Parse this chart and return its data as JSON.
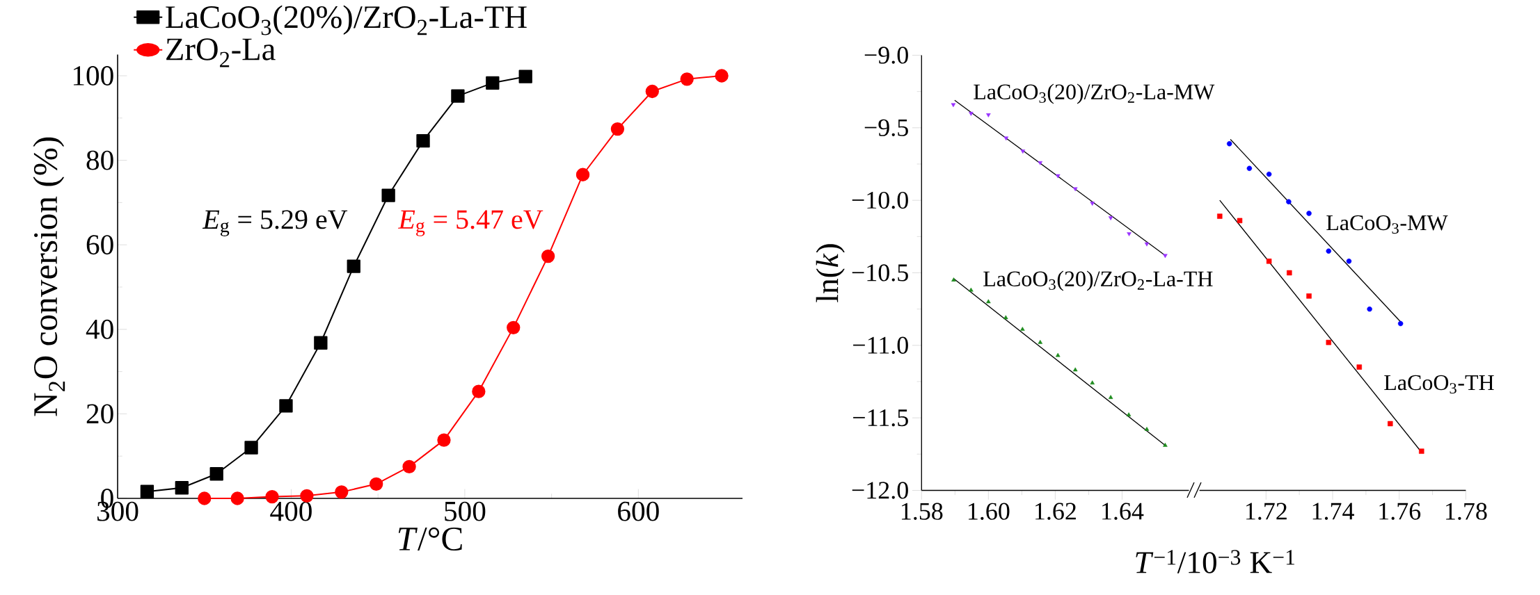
{
  "chart_data": [
    {
      "type": "line",
      "xlabel": "*T*/°C",
      "ylabel": "N$_{2}$O conversion (%)",
      "xlim": [
        300,
        660
      ],
      "ylim": [
        0,
        105
      ],
      "xticks": [
        300,
        400,
        500,
        600
      ],
      "yticks": [
        0,
        20,
        40,
        60,
        80,
        100
      ],
      "legend": "top left",
      "series": [
        {
          "name": "LaCoO$_{3}$(20%)/ZrO$_{2}$-La-TH",
          "color": "#000000",
          "marker": "square",
          "x": [
            317,
            337,
            357,
            377,
            397,
            417,
            436,
            456,
            476,
            496,
            516,
            535
          ],
          "values": [
            1.6,
            2.5,
            5.8,
            12.0,
            21.9,
            36.8,
            54.9,
            71.7,
            84.6,
            95.2,
            98.3,
            99.8
          ]
        },
        {
          "name": "ZrO$_{2}$-La",
          "color": "#ff0000",
          "marker": "circle",
          "x": [
            350,
            369,
            389,
            409,
            429,
            449,
            468,
            488,
            508,
            528,
            548,
            568,
            588,
            608,
            628,
            648
          ],
          "values": [
            0,
            0,
            0.4,
            0.6,
            1.5,
            3.4,
            7.5,
            13.8,
            25.3,
            40.4,
            57.3,
            76.6,
            87.4,
            96.3,
            99.2,
            100
          ]
        }
      ],
      "annotations": [
        "*E*$_{g}$ = 5.29 eV",
        "*E*$_{g}$ = 5.47 eV"
      ]
    },
    {
      "type": "scatter",
      "xlabel": "*T*$^{−1}$/10$^{−3}$ K$^{−1}$",
      "ylabel": "ln(*k*)",
      "xlim": [
        1.58,
        1.66
      ],
      "ylim": [
        -12,
        -9
      ],
      "xticks": [
        1.58,
        {
          "value": 1.6,
          "label": "1.60"
        },
        1.62,
        1.64
      ],
      "yticks": [
        {
          "value": -12,
          "label": "−12.0"
        },
        {
          "value": -11.5,
          "label": "−11.5"
        },
        {
          "value": -11,
          "label": "−11.0"
        },
        {
          "value": -10.5,
          "label": "−10.5"
        },
        {
          "value": -10,
          "label": "−10.0"
        },
        {
          "value": -9.5,
          "label": "−9.5"
        },
        {
          "value": -9,
          "label": "−9.0"
        }
      ],
      "series": [
        {
          "name": "LaCoO$_{3}$(20)/ZrO$_{2}$-La-MW",
          "color": "#9933ff",
          "marker": "triangle",
          "x": [
            1.5895,
            1.5948,
            1.6,
            1.6053,
            1.6103,
            1.6155,
            1.6208,
            1.626,
            1.6311,
            1.6366,
            1.6421,
            1.6474,
            1.6529
          ],
          "values": [
            -9.34,
            -9.4,
            -9.41,
            -9.57,
            -9.66,
            -9.74,
            -9.83,
            -9.92,
            -10.02,
            -10.12,
            -10.23,
            -10.3,
            -10.38
          ]
        },
        {
          "type": "line",
          "color": "#000000",
          "marker": "none",
          "x": [
            1.5899,
            1.6529
          ],
          "values": [
            -9.31,
            -10.38
          ]
        },
        {
          "name": "LaCoO$_{3}$(20)/ZrO$_{2}$-La-TH",
          "color": "#1e8c1e",
          "marker": "triangle",
          "x": [
            1.5896,
            1.5948,
            1.6,
            1.6052,
            1.6102,
            1.6155,
            1.6208,
            1.626,
            1.6311,
            1.6366,
            1.642,
            1.6474,
            1.6529
          ],
          "values": [
            -10.55,
            -10.62,
            -10.7,
            -10.81,
            -10.89,
            -10.98,
            -11.07,
            -11.17,
            -11.26,
            -11.36,
            -11.48,
            -11.58,
            -11.69
          ]
        },
        {
          "type": "line",
          "color": "#000000",
          "marker": "none",
          "x": [
            1.5896,
            1.6529
          ],
          "values": [
            -10.54,
            -11.69
          ]
        }
      ]
    },
    {
      "type": "scatter",
      "xlim": [
        1.7,
        1.78
      ],
      "ylim": [
        -12,
        -9
      ],
      "xticks": [
        1.72,
        1.74,
        1.76,
        1.78
      ],
      "tick_labels": "x",
      "series": [
        {
          "name": "LaCoO$_{3}$-MW",
          "color": "#0000ff",
          "marker": "circle",
          "x": [
            1.709,
            1.715,
            1.7209,
            1.7268,
            1.7329,
            1.7388,
            1.7449,
            1.7511,
            1.7604
          ],
          "values": [
            -9.61,
            -9.78,
            -9.82,
            -10.01,
            -10.09,
            -10.35,
            -10.42,
            -10.75,
            -10.85
          ]
        },
        {
          "type": "line",
          "color": "#000000",
          "marker": "none",
          "x": [
            1.7093,
            1.7609
          ],
          "values": [
            -9.58,
            -10.85
          ]
        },
        {
          "name": "LaCoO$_{3}$-TH",
          "color": "#ff0000",
          "marker": "square",
          "x": [
            1.7061,
            1.7121,
            1.7209,
            1.727,
            1.7329,
            1.7388,
            1.748,
            1.7573,
            1.7667
          ],
          "values": [
            -10.11,
            -10.14,
            -10.42,
            -10.5,
            -10.66,
            -10.98,
            -11.15,
            -11.54,
            -11.73
          ]
        },
        {
          "type": "line",
          "color": "#000000",
          "marker": "none",
          "x": [
            1.7061,
            1.7668
          ],
          "values": [
            -10.0,
            -11.74
          ]
        }
      ]
    }
  ]
}
